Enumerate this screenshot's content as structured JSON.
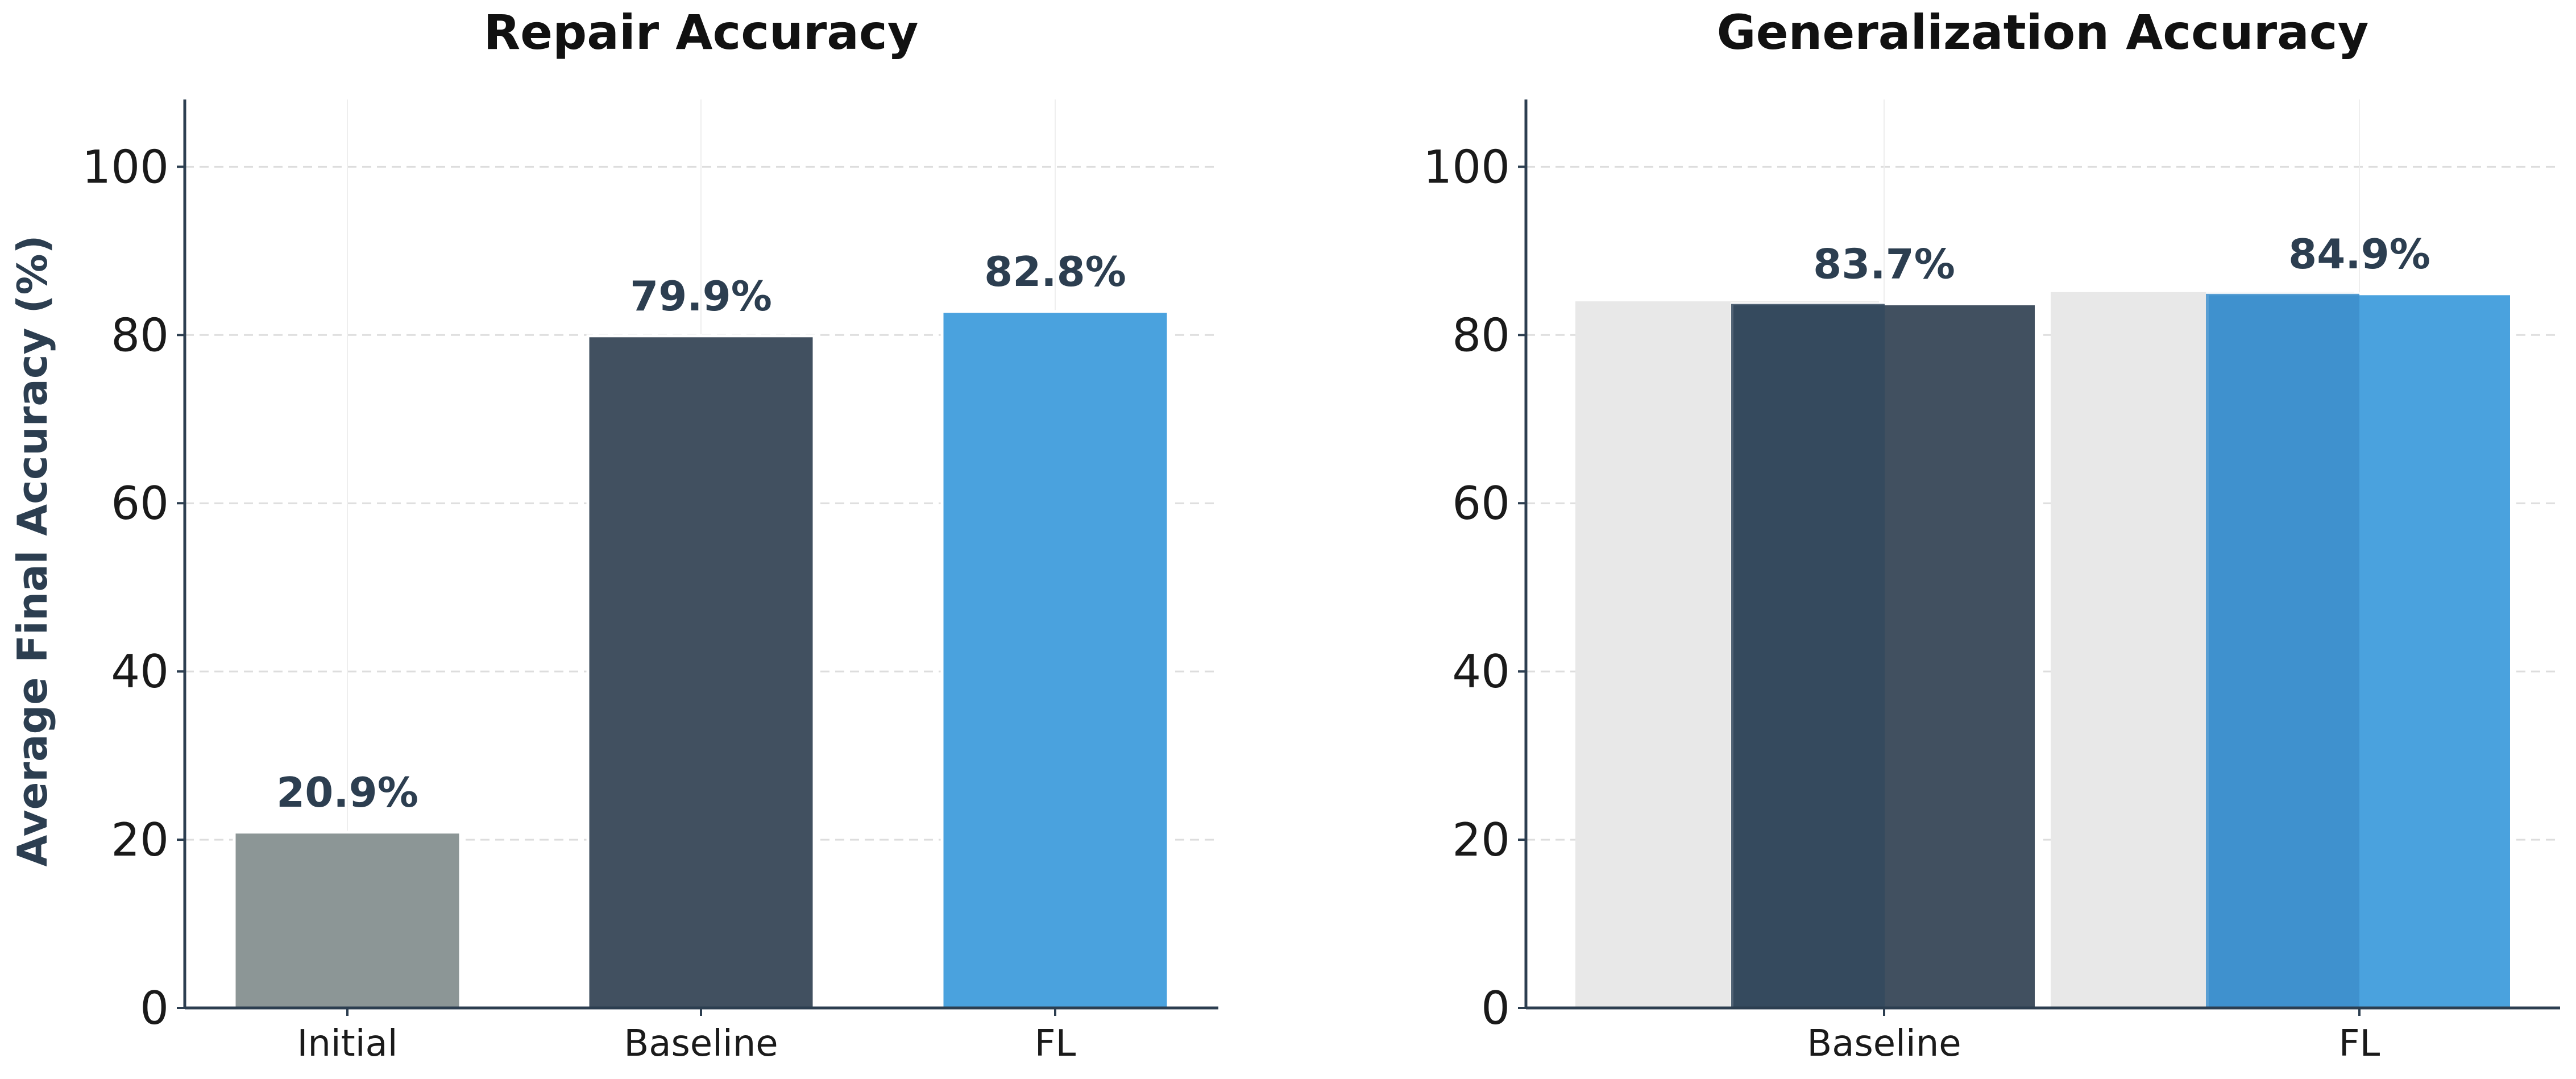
{
  "colors": {
    "axis": "#2c3e50",
    "label_text": "#2c3e50",
    "grid": "#dddddd",
    "initial": "#8c9696",
    "baseline": "#415060",
    "fl": "#4aa2de",
    "background_bar": "#e8e8e8",
    "baseline_overlay": "#34495e",
    "fl_overlay": "#3d8ecb"
  },
  "chart_data": [
    {
      "type": "bar",
      "title": "Repair Accuracy",
      "ylabel": "Average Final Accuracy (%)",
      "xlabel": "",
      "categories": [
        "Initial",
        "Baseline",
        "FL"
      ],
      "values": [
        20.9,
        79.9,
        82.8
      ],
      "data_labels": [
        "20.9%",
        "79.9%",
        "82.8%"
      ],
      "ylim": [
        0,
        108
      ],
      "yticks": [
        0,
        20,
        40,
        60,
        80,
        100
      ],
      "ytick_labels": [
        "0",
        "20",
        "40",
        "60",
        "80",
        "100"
      ],
      "grid": true,
      "legend": "none"
    },
    {
      "type": "bar",
      "title": "Generalization Accuracy",
      "ylabel": "",
      "xlabel": "",
      "categories": [
        "Baseline",
        "FL"
      ],
      "values": [
        83.7,
        84.9
      ],
      "data_labels": [
        "83.7%",
        "84.9%"
      ],
      "background_values": [
        84.0,
        85.1
      ],
      "ylim": [
        0,
        108
      ],
      "yticks": [
        0,
        20,
        40,
        60,
        80,
        100
      ],
      "ytick_labels": [
        "0",
        "20",
        "40",
        "60",
        "80",
        "100"
      ],
      "grid": true,
      "legend": "none"
    }
  ]
}
